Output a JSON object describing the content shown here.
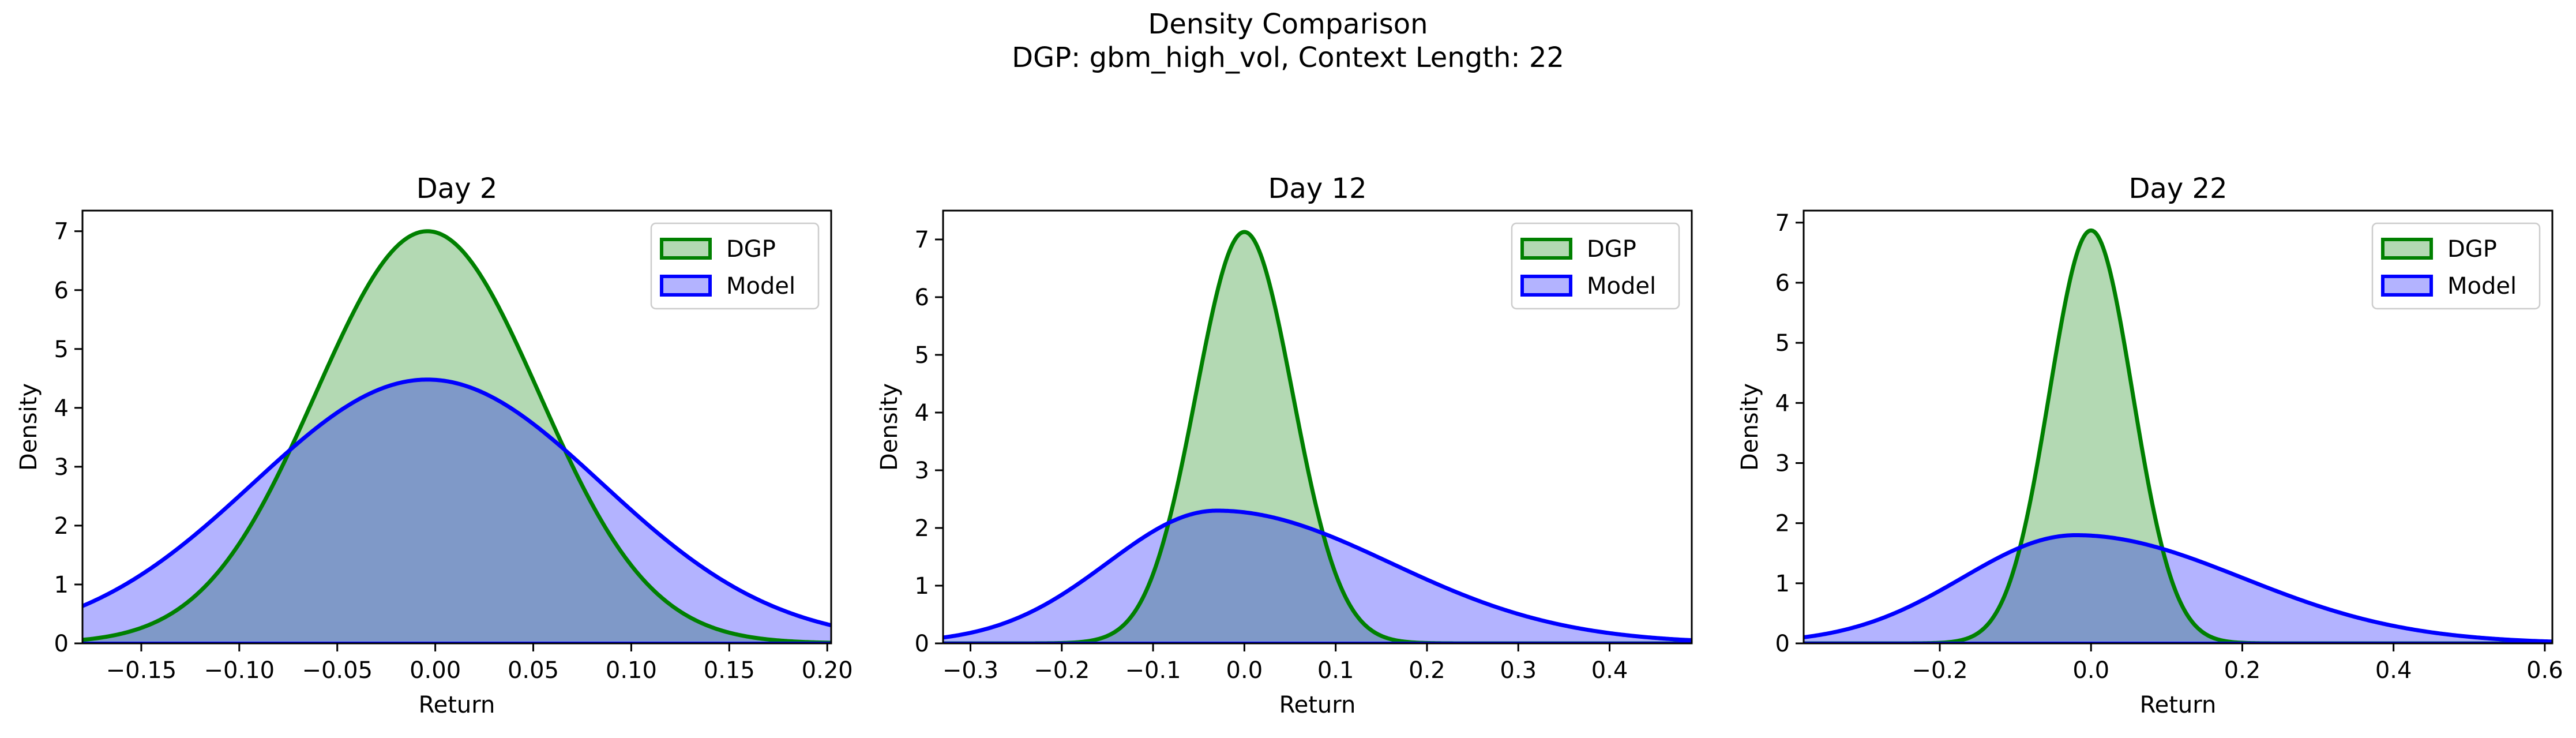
{
  "figure": {
    "title": "Density Comparison",
    "subtitle": "DGP: gbm_high_vol, Context Length: 22"
  },
  "colors": {
    "dgp_line": "#008000",
    "dgp_fill": "#b3d9b3",
    "model_line": "#0000ff",
    "model_fill": "#b3b3ff",
    "overlap_fill": "#7f99c8"
  },
  "chart_data": [
    {
      "type": "area",
      "title": "Day 2",
      "xlabel": "Return",
      "ylabel": "Density",
      "xlim": [
        -0.18,
        0.202
      ],
      "ylim": [
        0,
        7.35
      ],
      "xticks": [
        -0.15,
        -0.1,
        -0.05,
        0.0,
        0.05,
        0.1,
        0.15,
        0.2
      ],
      "xtick_labels": [
        "−0.15",
        "−0.10",
        "−0.05",
        "0.00",
        "0.05",
        "0.10",
        "0.15",
        "0.20"
      ],
      "yticks": [
        0,
        1,
        2,
        3,
        4,
        5,
        6,
        7
      ],
      "ytick_labels": [
        "0",
        "1",
        "2",
        "3",
        "4",
        "5",
        "6",
        "7"
      ],
      "legend": {
        "placement": "upper-right",
        "entries": [
          "DGP",
          "Model"
        ]
      },
      "series": [
        {
          "name": "DGP",
          "mean": -0.004,
          "std": 0.057,
          "peak": 7.0
        },
        {
          "name": "Model",
          "mean": -0.004,
          "std": 0.089,
          "peak": 4.48
        }
      ]
    },
    {
      "type": "area",
      "title": "Day 12",
      "xlabel": "Return",
      "ylabel": "Density",
      "xlim": [
        -0.33,
        0.49
      ],
      "ylim": [
        0,
        7.5
      ],
      "xticks": [
        -0.3,
        -0.2,
        -0.1,
        0.0,
        0.1,
        0.2,
        0.3,
        0.4
      ],
      "xtick_labels": [
        "−0.3",
        "−0.2",
        "−0.1",
        "0.0",
        "0.1",
        "0.2",
        "0.3",
        "0.4"
      ],
      "yticks": [
        0,
        1,
        2,
        3,
        4,
        5,
        6,
        7
      ],
      "ytick_labels": [
        "0",
        "1",
        "2",
        "3",
        "4",
        "5",
        "6",
        "7"
      ],
      "legend": {
        "placement": "upper-right",
        "entries": [
          "DGP",
          "Model"
        ]
      },
      "series": [
        {
          "name": "DGP",
          "mean": 0.0,
          "std": 0.053,
          "peak": 7.13
        },
        {
          "name": "Model",
          "mean": -0.03,
          "std_left": 0.12,
          "std_right": 0.19,
          "peak": 2.3
        }
      ]
    },
    {
      "type": "area",
      "title": "Day 22",
      "xlabel": "Return",
      "ylabel": "Density",
      "xlim": [
        -0.38,
        0.61
      ],
      "ylim": [
        0,
        7.2
      ],
      "xticks": [
        -0.2,
        0.0,
        0.2,
        0.4,
        0.6
      ],
      "xtick_labels": [
        "−0.2",
        "0.0",
        "0.2",
        "0.4",
        "0.6"
      ],
      "yticks": [
        0,
        1,
        2,
        3,
        4,
        5,
        6,
        7
      ],
      "ytick_labels": [
        "0",
        "1",
        "2",
        "3",
        "4",
        "5",
        "6",
        "7"
      ],
      "legend": {
        "placement": "upper-right",
        "entries": [
          "DGP",
          "Model"
        ]
      },
      "series": [
        {
          "name": "DGP",
          "mean": 0.0,
          "std": 0.055,
          "peak": 6.87
        },
        {
          "name": "Model",
          "mean": -0.02,
          "std_left": 0.15,
          "std_right": 0.22,
          "peak": 1.8
        }
      ]
    }
  ]
}
